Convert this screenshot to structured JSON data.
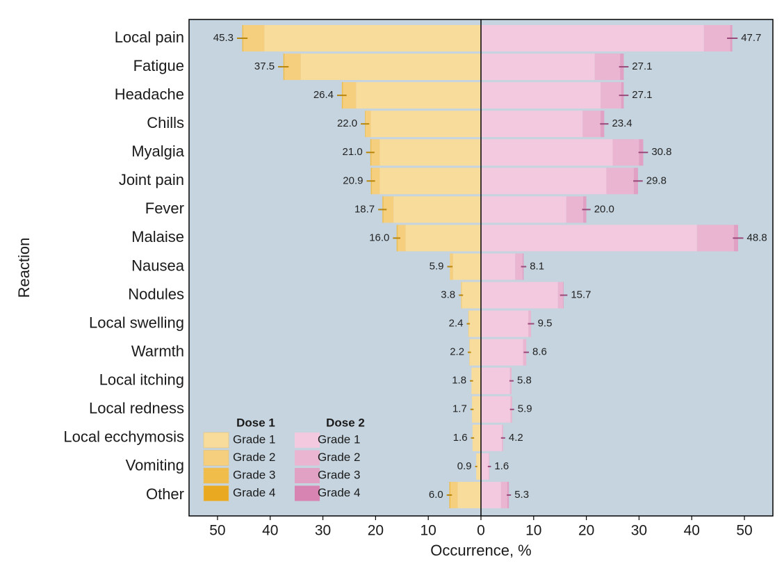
{
  "chart_data": {
    "type": "butterfly",
    "x_label": "Occurrence, %",
    "y_label": "Reaction",
    "categories": [
      "Local pain",
      "Fatigue",
      "Headache",
      "Chills",
      "Myalgia",
      "Joint pain",
      "Fever",
      "Malaise",
      "Nausea",
      "Nodules",
      "Local swelling",
      "Warmth",
      "Local itching",
      "Local redness",
      "Local ecchymosis",
      "Vomiting",
      "Other"
    ],
    "xlim": [
      -55.4,
      55.4
    ],
    "xticks": [
      {
        "value": -50,
        "label": "50"
      },
      {
        "value": -40,
        "label": "40"
      },
      {
        "value": -30,
        "label": "30"
      },
      {
        "value": -20,
        "label": "20"
      },
      {
        "value": -10,
        "label": "10"
      },
      0,
      10,
      20,
      30,
      40,
      50
    ],
    "groups": [
      {
        "name": "Dose 1",
        "series": [
          {
            "name": "Grade 1",
            "color": "#f8dc9c",
            "values": [
              41.1,
              34.2,
              23.7,
              20.9,
              19.2,
              19.2,
              16.6,
              14.3,
              5.3,
              3.6,
              2.3,
              2.1,
              1.8,
              1.7,
              1.6,
              0.9,
              4.4
            ]
          },
          {
            "name": "Grade 2",
            "color": "#f5cf7e",
            "values": [
              4.0,
              3.1,
              2.5,
              1.0,
              1.6,
              1.5,
              1.9,
              1.5,
              0.6,
              0.2,
              0.1,
              0.1,
              0,
              0,
              0,
              0,
              1.4
            ]
          },
          {
            "name": "Grade 3",
            "color": "#f0bd4a",
            "values": [
              0.2,
              0.2,
              0.2,
              0.1,
              0.2,
              0.2,
              0.2,
              0.2,
              0,
              0,
              0,
              0,
              0,
              0,
              0,
              0,
              0.2
            ]
          },
          {
            "name": "Grade 4",
            "color": "#e9aa22",
            "values": [
              0,
              0,
              0,
              0,
              0,
              0,
              0,
              0,
              0,
              0,
              0,
              0,
              0,
              0,
              0,
              0,
              0
            ]
          }
        ],
        "totals": [
          45.3,
          37.5,
          26.4,
          22.0,
          21.0,
          20.9,
          18.7,
          16.0,
          5.9,
          3.8,
          2.4,
          2.2,
          1.8,
          1.7,
          1.6,
          0.9,
          6.0
        ],
        "value_labels": [
          "45.3",
          "37.5",
          "26.4",
          "22.0",
          "21.0",
          "20.9",
          "18.7",
          "16.0",
          "5.9",
          "3.8",
          "2.4",
          "2.2",
          "1.8",
          "1.7",
          "1.6",
          "0.9",
          "6.0"
        ],
        "errors": [
          1.0,
          1.0,
          0.9,
          0.8,
          0.8,
          0.8,
          0.8,
          0.7,
          0.5,
          0.4,
          0.3,
          0.3,
          0.3,
          0.3,
          0.3,
          0.2,
          0.5
        ]
      },
      {
        "name": "Dose 2",
        "series": [
          {
            "name": "Grade 1",
            "color": "#f2c9de",
            "values": [
              42.3,
              21.6,
              22.7,
              19.3,
              25.0,
              23.8,
              16.2,
              41.0,
              6.5,
              14.6,
              9.0,
              8.0,
              5.5,
              5.6,
              4.0,
              1.5,
              3.8
            ]
          },
          {
            "name": "Grade 2",
            "color": "#e9b5d0",
            "values": [
              5.0,
              4.8,
              3.9,
              3.4,
              5.0,
              5.2,
              3.2,
              7.0,
              1.4,
              1.0,
              0.5,
              0.6,
              0.3,
              0.3,
              0.2,
              0.1,
              1.2
            ]
          },
          {
            "name": "Grade 3",
            "color": "#e0a1c4",
            "values": [
              0.4,
              0.7,
              0.5,
              0.7,
              0.8,
              0.8,
              0.6,
              0.8,
              0.2,
              0.1,
              0,
              0,
              0,
              0,
              0,
              0,
              0.3
            ]
          },
          {
            "name": "Grade 4",
            "color": "#d784b3",
            "values": [
              0,
              0,
              0,
              0,
              0,
              0,
              0,
              0,
              0,
              0,
              0,
              0,
              0,
              0,
              0,
              0,
              0
            ]
          }
        ],
        "totals": [
          47.7,
          27.1,
          27.1,
          23.4,
          30.8,
          29.8,
          20.0,
          48.8,
          8.1,
          15.7,
          9.5,
          8.6,
          5.8,
          5.9,
          4.2,
          1.6,
          5.3
        ],
        "value_labels": [
          "47.7",
          "27.1",
          "27.1",
          "23.4",
          "30.8",
          "29.8",
          "20.0",
          "48.8",
          "8.1",
          "15.7",
          "9.5",
          "8.6",
          "5.8",
          "5.9",
          "4.2",
          "1.6",
          "5.3"
        ],
        "errors": [
          1.0,
          0.9,
          0.9,
          0.8,
          0.9,
          0.9,
          0.8,
          1.0,
          0.5,
          0.7,
          0.6,
          0.5,
          0.4,
          0.4,
          0.4,
          0.3,
          0.4
        ]
      }
    ],
    "plot_background": "#c5d4df"
  }
}
